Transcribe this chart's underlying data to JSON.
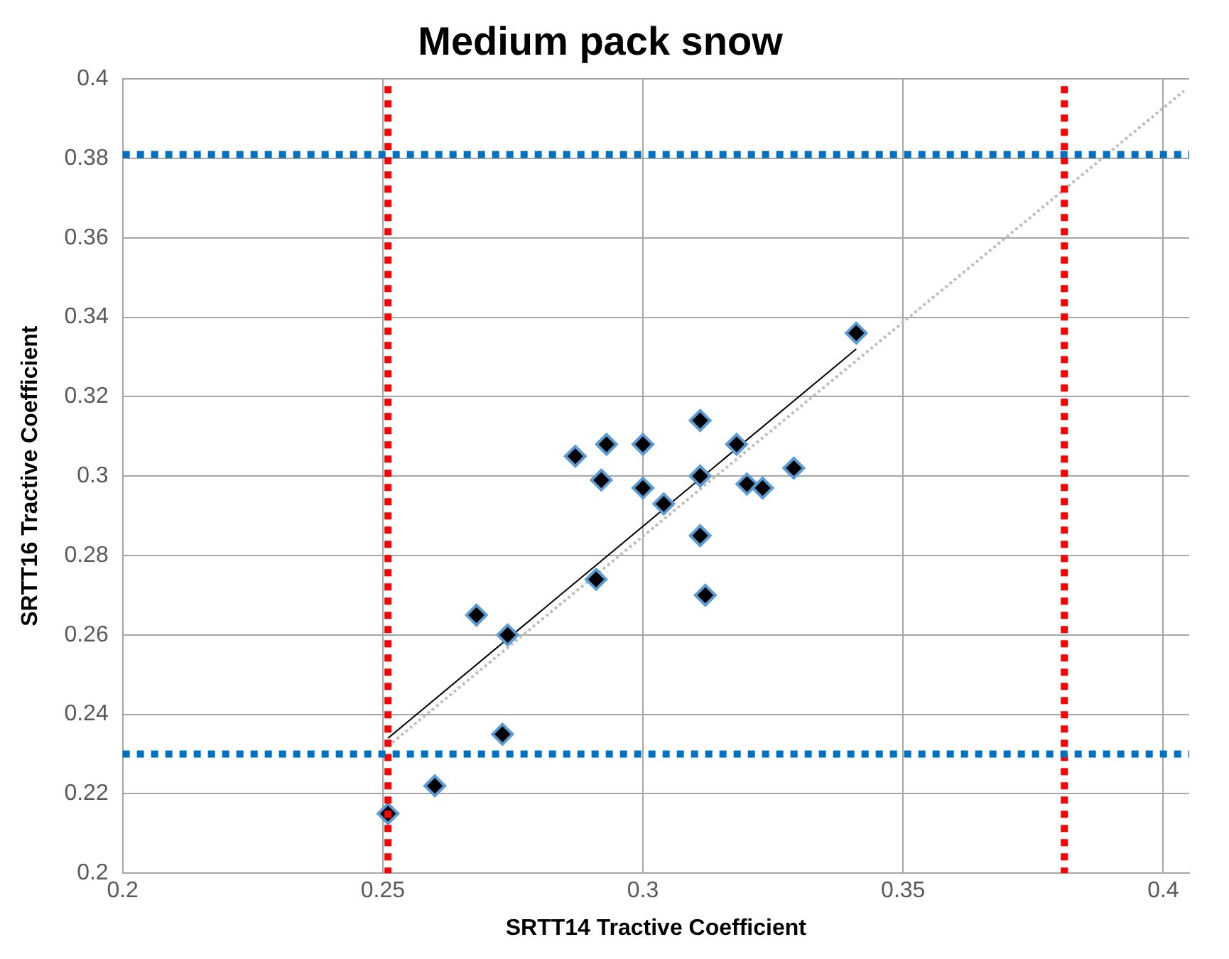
{
  "chart_data": {
    "type": "scatter",
    "title": "Medium pack snow",
    "xlabel": "SRTT14 Tractive Coefficient",
    "ylabel": "SRTT16 Tractive Coefficient",
    "xlim": [
      0.2,
      0.405
    ],
    "xticks": [
      0.2,
      0.25,
      0.3,
      0.35,
      0.4
    ],
    "ylim": [
      0.2,
      0.4
    ],
    "yticks": [
      0.2,
      0.22,
      0.24,
      0.26,
      0.28,
      0.3,
      0.32,
      0.34,
      0.36,
      0.38,
      0.4
    ],
    "grid": true,
    "legend": false,
    "marker": "diamond",
    "series": [
      {
        "type": "scatter",
        "color": "#000000",
        "x": [
          0.251,
          0.26,
          0.273,
          0.268,
          0.274,
          0.291,
          0.287,
          0.293,
          0.292,
          0.3,
          0.3,
          0.304,
          0.311,
          0.311,
          0.311,
          0.312,
          0.318,
          0.32,
          0.323,
          0.329,
          0.341
        ],
        "values": [
          0.215,
          0.222,
          0.235,
          0.265,
          0.26,
          0.274,
          0.305,
          0.308,
          0.299,
          0.308,
          0.297,
          0.293,
          0.314,
          0.3,
          0.285,
          0.27,
          0.308,
          0.298,
          0.297,
          0.302,
          0.336
        ]
      },
      {
        "type": "line",
        "color": "#000000",
        "marker": "none",
        "line_style": "solid",
        "x": [
          0.251,
          0.341
        ],
        "values": [
          0.234,
          0.332
        ]
      },
      {
        "type": "line",
        "color": "#bfbfbf",
        "marker": "none",
        "line_style": "dotted",
        "x": [
          0.251,
          0.404
        ],
        "values": [
          0.232,
          0.397
        ]
      }
    ],
    "ref_lines": [
      {
        "axis": "x",
        "value": 0.251,
        "color": "#ff0000",
        "line_style": "dotted"
      },
      {
        "axis": "x",
        "value": 0.381,
        "color": "#ff0000",
        "line_style": "dotted"
      },
      {
        "axis": "y",
        "value": 0.381,
        "color": "#0070c0",
        "line_style": "dotted"
      },
      {
        "axis": "y",
        "value": 0.23,
        "color": "#0070c0",
        "line_style": "dotted"
      }
    ]
  }
}
